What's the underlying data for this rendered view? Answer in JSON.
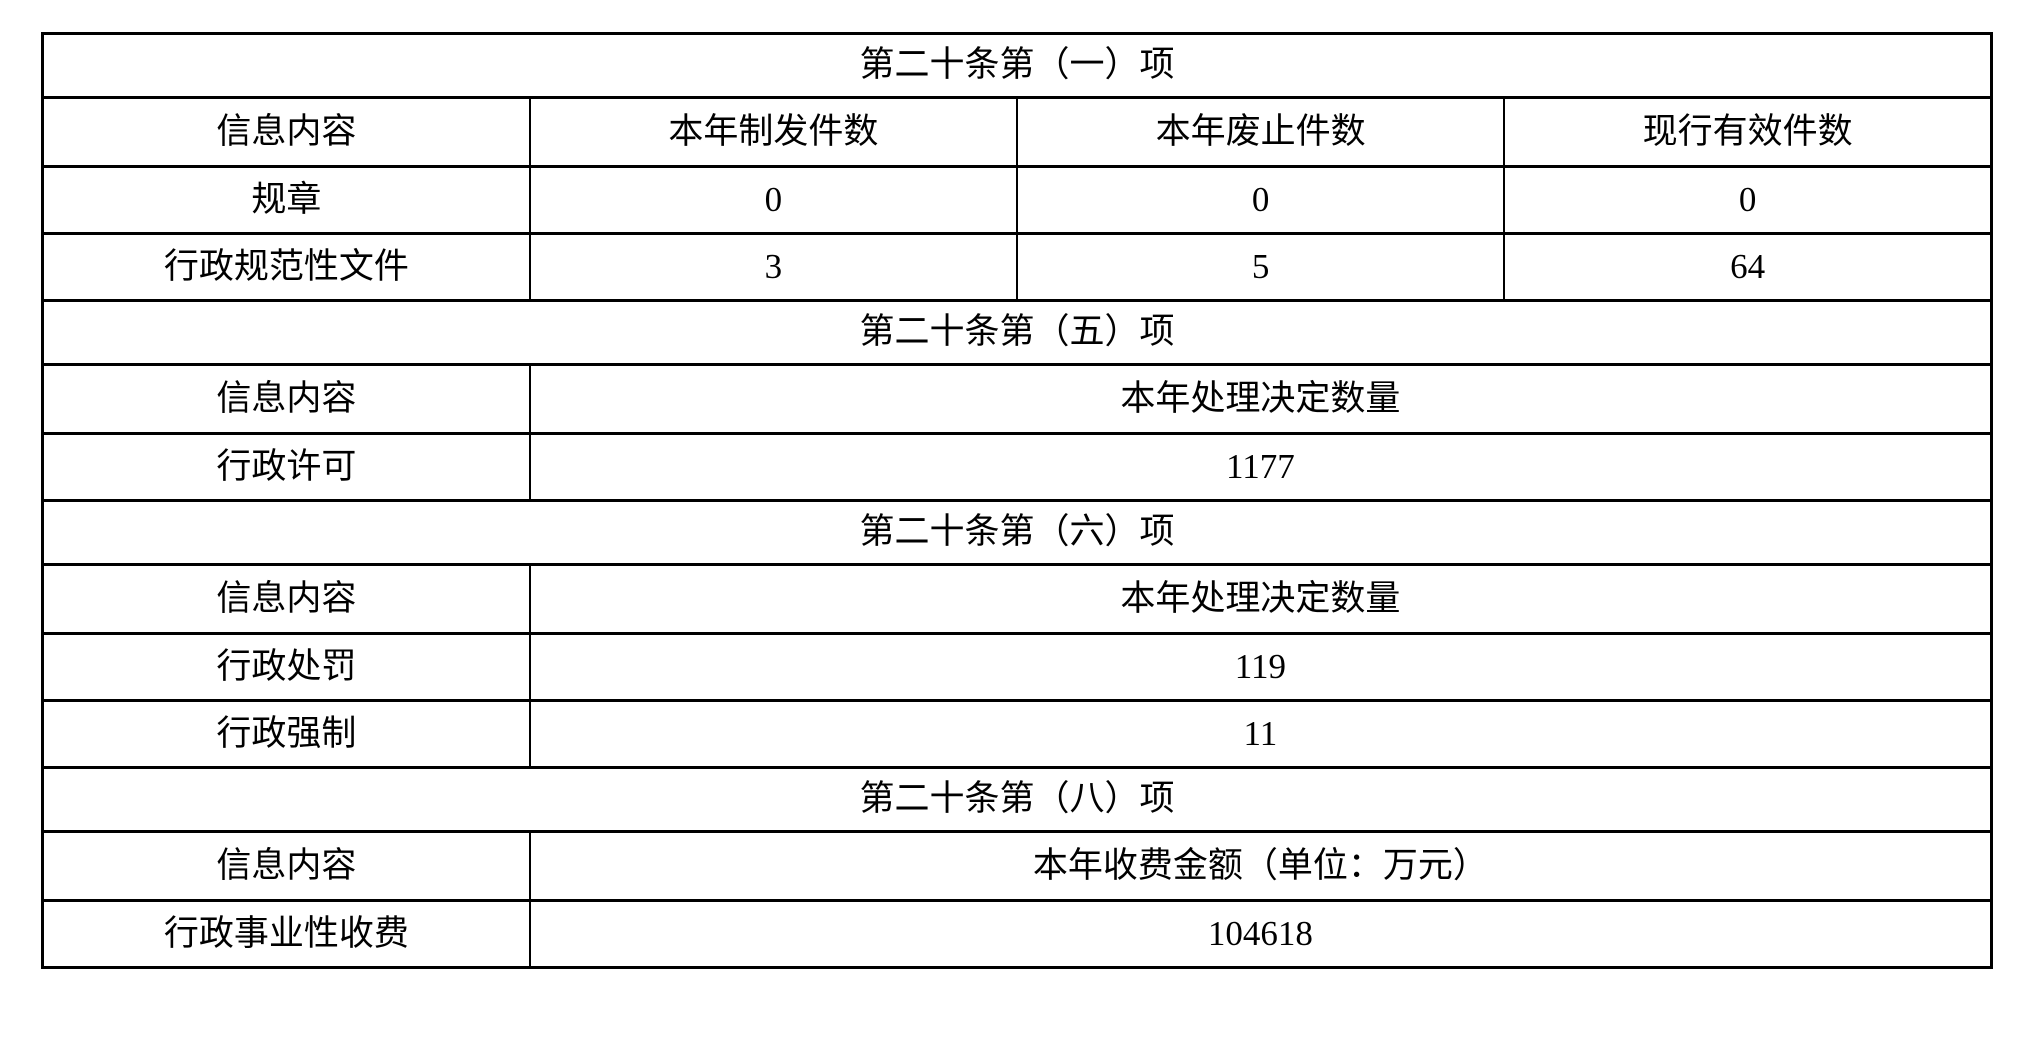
{
  "page": {
    "background_color": "#ffffff",
    "text_color": "#000000",
    "border_color": "#000000"
  },
  "sections": [
    {
      "title": "第二十条第（一）项",
      "columns": [
        "信息内容",
        "本年制发件数",
        "本年废止件数",
        "现行有效件数"
      ],
      "rows": [
        {
          "label": "规章",
          "values": [
            "0",
            "0",
            "0"
          ]
        },
        {
          "label": "行政规范性文件",
          "values": [
            "3",
            "5",
            "64"
          ]
        }
      ]
    },
    {
      "title": "第二十条第（五）项",
      "columns": [
        "信息内容",
        "本年处理决定数量"
      ],
      "rows": [
        {
          "label": "行政许可",
          "values": [
            "1177"
          ]
        }
      ]
    },
    {
      "title": "第二十条第（六）项",
      "columns": [
        "信息内容",
        "本年处理决定数量"
      ],
      "rows": [
        {
          "label": "行政处罚",
          "values": [
            "119"
          ]
        },
        {
          "label": "行政强制",
          "values": [
            "11"
          ]
        }
      ]
    },
    {
      "title": "第二十条第（八）项",
      "columns": [
        "信息内容",
        "本年收费金额（单位：万元）"
      ],
      "rows": [
        {
          "label": "行政事业性收费",
          "values": [
            "104618"
          ]
        }
      ]
    }
  ]
}
